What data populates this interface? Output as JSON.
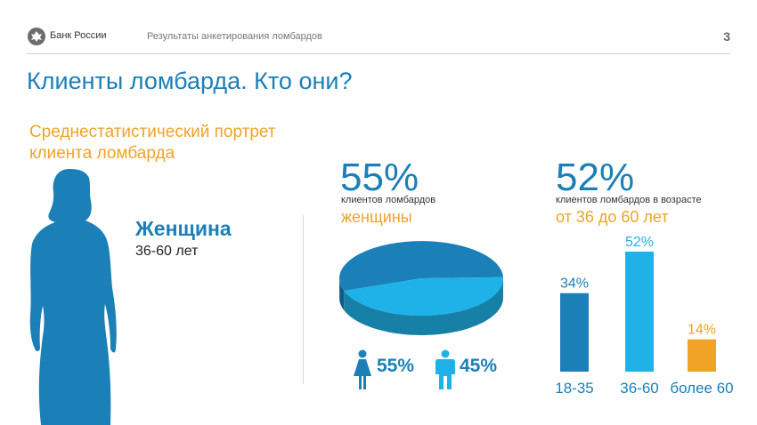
{
  "header": {
    "bank_name": "Банк России",
    "subtitle": "Результаты анкетирования ломбардов",
    "page_number": "3"
  },
  "title": "Клиенты ломбарда. Кто они?",
  "portrait": {
    "heading": "Среднестатистический портрет клиента ломбарда",
    "gender": "Женщина",
    "age": "36-60 лет"
  },
  "gender_block": {
    "big_value": "55%",
    "caption": "клиентов ломбардов",
    "highlight": "женщины",
    "female_label": "55%",
    "male_label": "45%"
  },
  "age_block": {
    "big_value": "52%",
    "caption": "клиентов ломбардов в возрасте",
    "highlight": "от 36 до 60 лет"
  },
  "colors": {
    "accent_blue": "#1b7fb8",
    "light_blue": "#1fb2e8",
    "orange": "#f0a327"
  },
  "chart_data": [
    {
      "type": "pie",
      "categories": [
        "женщины",
        "мужчины"
      ],
      "values": [
        55,
        45
      ],
      "value_labels": [
        "55%",
        "45%"
      ],
      "colors": [
        "#1b7fb8",
        "#1fb2e8"
      ]
    },
    {
      "type": "bar",
      "categories": [
        "18-35",
        "36-60",
        "более 60"
      ],
      "values": [
        34,
        52,
        14
      ],
      "value_labels": [
        "34%",
        "52%",
        "14%"
      ],
      "colors": [
        "#1b7fb8",
        "#1fb2e8",
        "#f0a327"
      ],
      "ylim": [
        0,
        52
      ]
    }
  ]
}
